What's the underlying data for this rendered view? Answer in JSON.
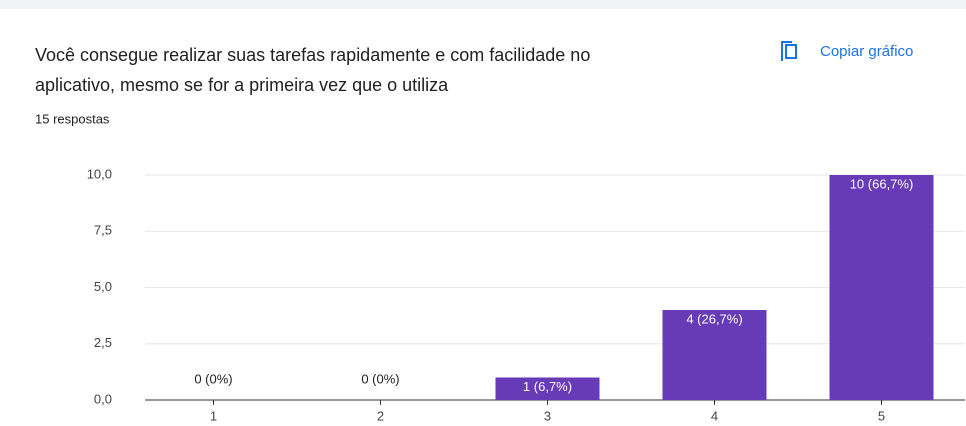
{
  "chart_data": {
    "type": "bar",
    "title": [
      "Você consegue realizar suas tarefas rapidamente e com facilidade no",
      "aplicativo, mesmo se for a primeira vez que o utiliza"
    ],
    "subtitle": "15 respostas",
    "button": "Copiar gráfico",
    "categories": [
      "1",
      "2",
      "3",
      "4",
      "5"
    ],
    "values": [
      0,
      0,
      1,
      4,
      10
    ],
    "value_labels": [
      "0 (0%)",
      "0 (0%)",
      "1 (6,7%)",
      "4 (26,7%)",
      "10 (66,7%)"
    ],
    "color": "#673ab7",
    "ylim": [
      0,
      10
    ],
    "yticks": [
      {
        "value": 0,
        "label": "0,0"
      },
      {
        "value": 2.5,
        "label": "2,5"
      },
      {
        "value": 5,
        "label": "5,0"
      },
      {
        "value": 7.5,
        "label": "7,5"
      },
      {
        "value": 10,
        "label": "10,0"
      }
    ],
    "grid": true
  }
}
